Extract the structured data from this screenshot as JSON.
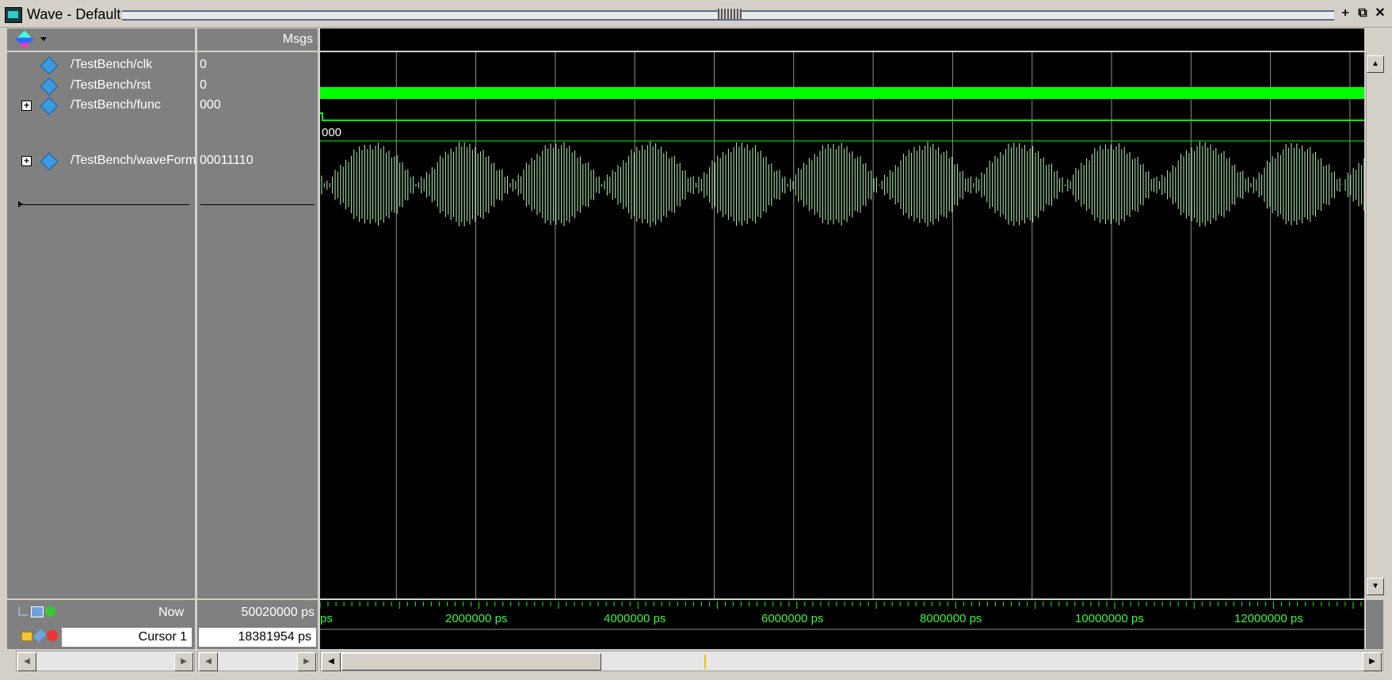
{
  "window": {
    "title": "Wave - Default",
    "buttons": [
      "+",
      "⧉",
      "✕"
    ]
  },
  "toolbar": {
    "icon": "wave-palette-icon"
  },
  "values_header": "Msgs",
  "signals": [
    {
      "name": "/TestBench/clk",
      "value": "0",
      "expandable": false
    },
    {
      "name": "/TestBench/rst",
      "value": "0",
      "expandable": false
    },
    {
      "name": "/TestBench/func",
      "value": "000",
      "expandable": true,
      "wave_label": "000"
    },
    {
      "name": "/TestBench/waveForm",
      "value": "00011110",
      "expandable": true
    }
  ],
  "footer": {
    "now_label": "Now",
    "now_value": "50020000 ps",
    "cursor_label": "Cursor 1",
    "cursor_value": "18381954 ps"
  },
  "timeline": {
    "first_label": "ps",
    "labels": [
      "2000000 ps",
      "4000000 ps",
      "6000000 ps",
      "8000000 ps",
      "10000000 ps",
      "12000000 ps"
    ]
  },
  "colors": {
    "wave_green": "#00ff00",
    "analog_green": "#b4f0b4",
    "grid": "#909090",
    "pane_gray": "#808080"
  }
}
